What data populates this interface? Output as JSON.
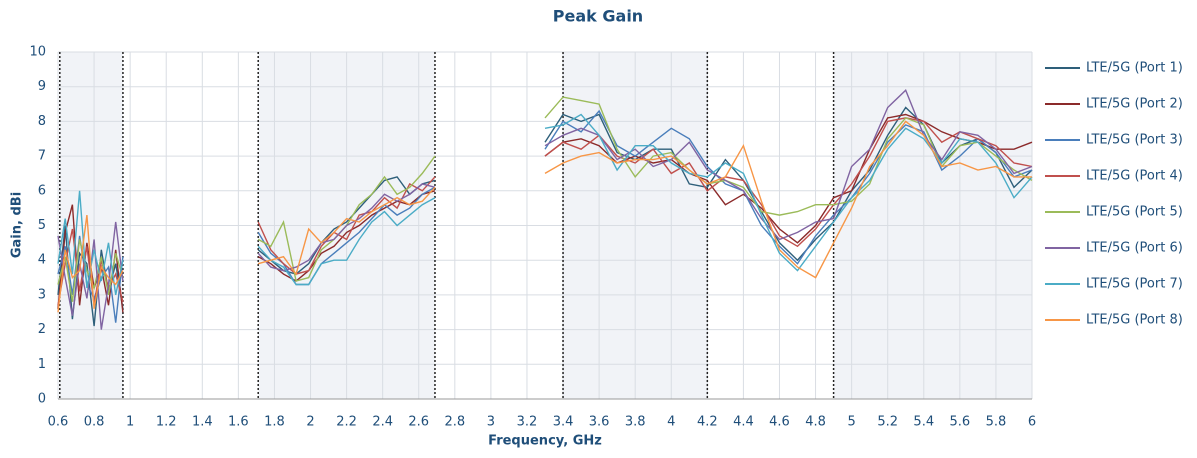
{
  "chart_data": {
    "type": "line",
    "title": "Peak Gain",
    "x_label": "Frequency, GHz",
    "y_label": "Gain, dBi",
    "xlim": [
      0.6,
      6
    ],
    "ylim": [
      0,
      10
    ],
    "xticks": [
      0.6,
      0.8,
      1,
      1.2,
      1.4,
      1.6,
      1.8,
      2,
      2.2,
      2.4,
      2.6,
      2.8,
      3,
      3.2,
      3.4,
      3.6,
      3.8,
      4,
      4.2,
      4.4,
      4.6,
      4.8,
      5,
      5.2,
      5.4,
      5.6,
      5.8,
      6
    ],
    "yticks": [
      0,
      1,
      2,
      3,
      4,
      5,
      6,
      7,
      8,
      9,
      10
    ],
    "grid": true,
    "legend": "right",
    "bands": [
      [
        0.61,
        0.96
      ],
      [
        1.71,
        2.69
      ],
      [
        3.4,
        4.2
      ],
      [
        4.9,
        6
      ]
    ],
    "x": [
      0.6,
      0.64,
      0.68,
      0.72,
      0.76,
      0.8,
      0.84,
      0.88,
      0.92,
      0.96,
      1.3,
      1.71,
      1.78,
      1.85,
      1.92,
      1.99,
      2.06,
      2.13,
      2.2,
      2.27,
      2.34,
      2.41,
      2.48,
      2.55,
      2.62,
      2.69,
      3.0,
      3.3,
      3.4,
      3.5,
      3.6,
      3.7,
      3.8,
      3.9,
      4.0,
      4.1,
      4.2,
      4.3,
      4.4,
      4.5,
      4.6,
      4.7,
      4.8,
      4.9,
      5.0,
      5.1,
      5.2,
      5.3,
      5.4,
      5.5,
      5.6,
      5.7,
      5.8,
      5.9,
      6.0
    ],
    "series": [
      {
        "name": "LTE/5G  (Port 1)",
        "color": "#2e5f7a",
        "values": [
          3.0,
          5.0,
          2.3,
          4.2,
          3.9,
          2.1,
          4.3,
          3.1,
          3.9,
          2.6,
          null,
          4.3,
          4.0,
          3.7,
          3.6,
          3.9,
          4.5,
          4.9,
          5.1,
          5.5,
          5.9,
          6.3,
          6.4,
          5.9,
          6.2,
          6.3,
          null,
          7.4,
          8.2,
          8.0,
          8.2,
          7.1,
          6.9,
          7.2,
          7.2,
          6.2,
          6.1,
          6.9,
          6.3,
          5.4,
          4.5,
          4.0,
          4.6,
          5.1,
          6.0,
          6.6,
          7.6,
          8.4,
          7.9,
          6.8,
          7.3,
          7.5,
          7.1,
          6.1,
          6.6
        ]
      },
      {
        "name": "LTE/5G  (Port 2)",
        "color": "#8b2a2a",
        "values": [
          2.6,
          4.8,
          5.6,
          2.7,
          4.5,
          3.2,
          3.8,
          2.7,
          4.3,
          2.5,
          null,
          4.1,
          3.9,
          3.6,
          3.4,
          3.7,
          4.2,
          4.4,
          4.8,
          5.0,
          5.3,
          5.5,
          5.7,
          5.6,
          5.9,
          6.0,
          null,
          7.0,
          7.4,
          7.5,
          7.3,
          6.8,
          7.0,
          6.8,
          6.9,
          6.5,
          6.3,
          5.6,
          5.9,
          5.5,
          4.9,
          4.5,
          5.0,
          5.8,
          6.0,
          7.2,
          8.1,
          8.2,
          8.0,
          7.7,
          7.5,
          7.4,
          7.2,
          7.2,
          7.4
        ]
      },
      {
        "name": "LTE/5G  (Port 3)",
        "color": "#4a7ebb",
        "values": [
          3.6,
          4.4,
          3.0,
          4.7,
          3.3,
          2.9,
          3.5,
          3.8,
          2.2,
          4.1,
          null,
          4.8,
          4.2,
          3.9,
          3.3,
          3.3,
          3.9,
          4.2,
          4.5,
          4.8,
          5.2,
          5.6,
          5.3,
          5.5,
          5.9,
          6.1,
          null,
          7.2,
          8.0,
          7.7,
          8.3,
          7.3,
          7.0,
          7.4,
          7.8,
          7.5,
          6.7,
          6.2,
          6.0,
          5.0,
          4.4,
          3.9,
          4.7,
          5.3,
          5.8,
          6.5,
          7.4,
          7.9,
          7.7,
          6.6,
          7.0,
          7.5,
          7.1,
          6.4,
          6.6
        ]
      },
      {
        "name": "LTE/5G  (Port 4)",
        "color": "#c0504d",
        "values": [
          2.7,
          3.9,
          4.9,
          3.1,
          4.4,
          2.7,
          4.0,
          3.2,
          3.6,
          2.8,
          null,
          5.1,
          4.3,
          3.9,
          3.6,
          3.7,
          4.4,
          4.8,
          4.6,
          5.3,
          5.4,
          5.8,
          5.5,
          6.2,
          6.0,
          6.4,
          null,
          7.0,
          7.4,
          7.2,
          7.6,
          7.0,
          6.8,
          7.2,
          6.5,
          6.8,
          6.0,
          6.4,
          6.3,
          5.6,
          4.7,
          4.4,
          4.9,
          5.6,
          6.2,
          7.0,
          8.0,
          8.1,
          8.0,
          7.4,
          7.7,
          7.5,
          7.3,
          6.8,
          6.7
        ]
      },
      {
        "name": "LTE/5G  (Port 5)",
        "color": "#9bbb59",
        "values": [
          3.3,
          4.1,
          2.8,
          4.6,
          3.7,
          3.2,
          4.1,
          3.0,
          4.2,
          3.5,
          null,
          4.6,
          4.4,
          5.1,
          3.4,
          3.5,
          4.3,
          4.6,
          5.0,
          5.6,
          5.9,
          6.4,
          5.9,
          6.1,
          6.5,
          7.0,
          null,
          8.1,
          8.7,
          8.6,
          8.5,
          7.2,
          6.4,
          7.0,
          7.1,
          6.6,
          6.2,
          6.3,
          6.1,
          5.4,
          5.3,
          5.4,
          5.6,
          5.6,
          5.7,
          6.2,
          7.5,
          8.1,
          7.9,
          6.7,
          7.3,
          7.4,
          7.0,
          6.6,
          6.3
        ]
      },
      {
        "name": "LTE/5G  (Port 6)",
        "color": "#8064a2",
        "values": [
          4.7,
          3.5,
          2.4,
          3.9,
          2.9,
          4.6,
          2.0,
          3.3,
          5.1,
          3.4,
          null,
          4.2,
          3.8,
          3.7,
          3.8,
          4.0,
          4.5,
          4.6,
          5.0,
          5.2,
          5.5,
          5.9,
          5.7,
          5.9,
          6.2,
          6.1,
          null,
          7.3,
          7.6,
          7.8,
          7.6,
          6.9,
          7.2,
          6.7,
          6.9,
          7.4,
          6.6,
          6.3,
          6.0,
          5.2,
          4.6,
          4.8,
          5.1,
          5.2,
          6.7,
          7.2,
          8.4,
          8.9,
          7.6,
          6.9,
          7.7,
          7.6,
          7.2,
          6.5,
          6.7
        ]
      },
      {
        "name": "LTE/5G  (Port 7)",
        "color": "#4bacc6",
        "values": [
          3.9,
          5.2,
          3.6,
          6.0,
          3.2,
          4.3,
          3.4,
          4.5,
          3.0,
          4.0,
          null,
          4.4,
          4.0,
          3.8,
          3.3,
          3.3,
          3.9,
          4.0,
          4.0,
          4.6,
          5.1,
          5.4,
          5.0,
          5.3,
          5.6,
          5.8,
          null,
          7.8,
          7.9,
          8.2,
          7.6,
          6.6,
          7.3,
          7.3,
          6.8,
          6.5,
          6.4,
          6.8,
          6.5,
          5.3,
          4.2,
          3.7,
          4.4,
          5.1,
          5.8,
          6.3,
          7.2,
          7.8,
          7.5,
          6.8,
          7.5,
          7.4,
          6.8,
          5.8,
          6.4
        ]
      },
      {
        "name": "LTE/5G  (Port 8)",
        "color": "#f79646",
        "values": [
          2.5,
          4.3,
          3.5,
          3.7,
          5.3,
          2.6,
          3.8,
          3.5,
          3.3,
          3.7,
          null,
          3.9,
          4.0,
          4.1,
          3.6,
          4.9,
          4.5,
          4.8,
          5.2,
          5.1,
          5.4,
          5.6,
          5.8,
          5.6,
          5.7,
          6.1,
          null,
          6.5,
          6.8,
          7.0,
          7.1,
          6.8,
          6.9,
          6.9,
          7.0,
          6.6,
          6.2,
          6.4,
          7.3,
          5.7,
          4.3,
          3.8,
          3.5,
          4.5,
          5.5,
          6.7,
          7.3,
          8.0,
          7.6,
          6.7,
          6.8,
          6.6,
          6.7,
          6.4,
          6.4
        ]
      }
    ]
  }
}
